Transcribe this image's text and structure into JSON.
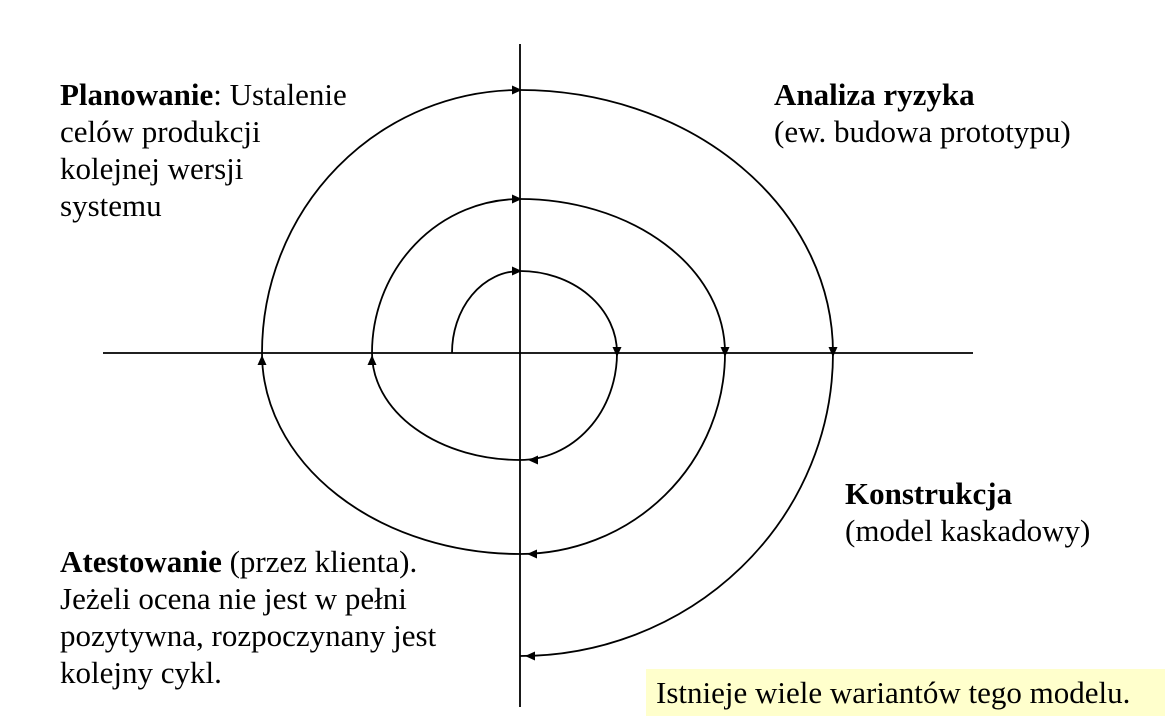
{
  "planning": {
    "title": "Planowanie",
    "text_first": ": Ustalenie",
    "lines": [
      "celów produkcji",
      "kolejnej wersji",
      "systemu"
    ]
  },
  "risk": {
    "title": "Analiza ryzyka",
    "subtitle": "(ew. budowa prototypu)"
  },
  "construction": {
    "title": "Konstrukcja",
    "subtitle": "(model kaskadowy)"
  },
  "testing": {
    "title": "Atestowanie",
    "text_first": " (przez klienta).",
    "lines": [
      "Jeżeli ocena nie jest w pełni",
      "pozytywna, rozpoczynany jest",
      "kolejny cykl."
    ]
  },
  "note": "Istnieje wiele wariantów tego modelu.",
  "colors": {
    "line": "#000000",
    "note_background": "#ffffcc"
  }
}
